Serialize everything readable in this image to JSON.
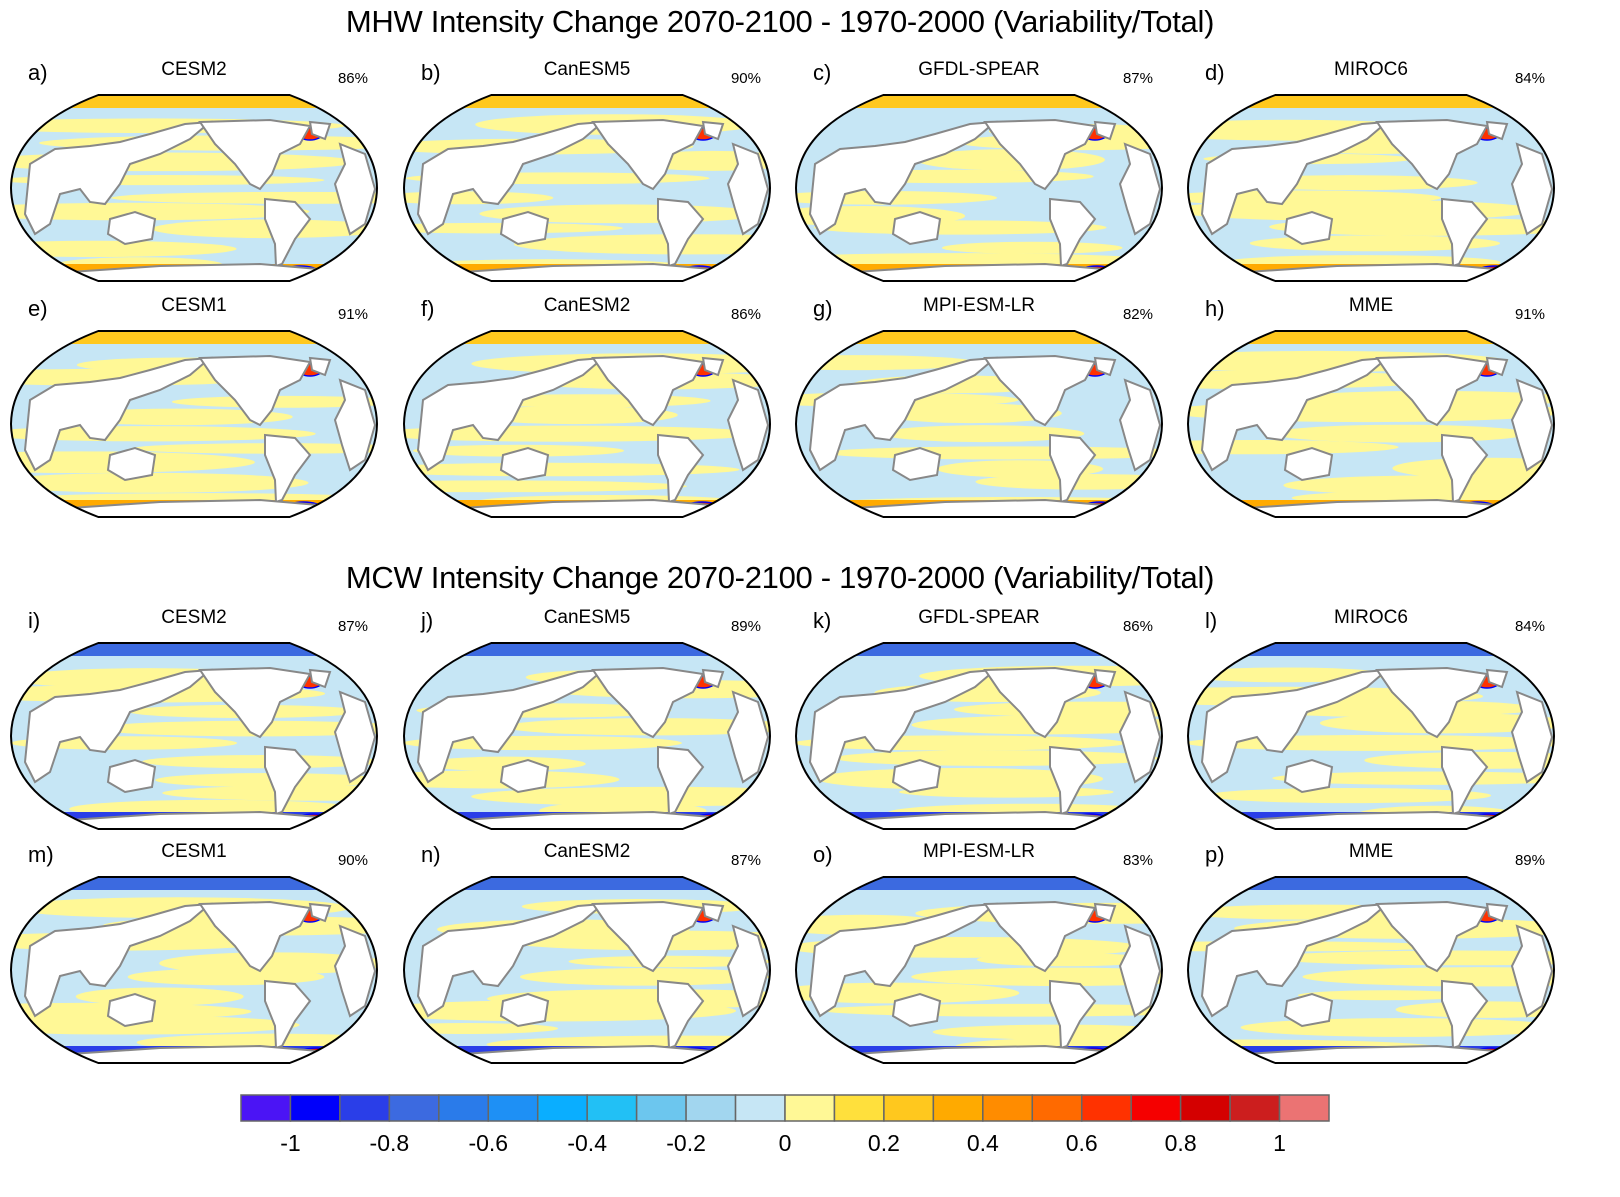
{
  "chart_data": [
    {
      "type": "heatmap",
      "title": "MHW Intensity Change 2070-2100 - 1970-2000 (Variability/Total)",
      "projection": "Robinson (Pacific-centered world map)",
      "panels": [
        {
          "label": "a)",
          "model": "CESM2",
          "percent": "86%"
        },
        {
          "label": "b)",
          "model": "CanESM5",
          "percent": "90%"
        },
        {
          "label": "c)",
          "model": "GFDL-SPEAR",
          "percent": "87%"
        },
        {
          "label": "d)",
          "model": "MIROC6",
          "percent": "84%"
        },
        {
          "label": "e)",
          "model": "CESM1",
          "percent": "91%"
        },
        {
          "label": "f)",
          "model": "CanESM2",
          "percent": "86%"
        },
        {
          "label": "g)",
          "model": "MPI-ESM-LR",
          "percent": "82%"
        },
        {
          "label": "h)",
          "model": "MME",
          "percent": "91%"
        }
      ]
    },
    {
      "type": "heatmap",
      "title": "MCW Intensity Change 2070-2100 - 1970-2000 (Variability/Total)",
      "projection": "Robinson (Pacific-centered world map)",
      "panels": [
        {
          "label": "i)",
          "model": "CESM2",
          "percent": "87%"
        },
        {
          "label": "j)",
          "model": "CanESM5",
          "percent": "89%"
        },
        {
          "label": "k)",
          "model": "GFDL-SPEAR",
          "percent": "86%"
        },
        {
          "label": "l)",
          "model": "MIROC6",
          "percent": "84%"
        },
        {
          "label": "m)",
          "model": "CESM1",
          "percent": "90%"
        },
        {
          "label": "n)",
          "model": "CanESM2",
          "percent": "87%"
        },
        {
          "label": "o)",
          "model": "MPI-ESM-LR",
          "percent": "83%"
        },
        {
          "label": "p)",
          "model": "MME",
          "percent": "89%"
        }
      ]
    }
  ],
  "colorbar": {
    "range": [
      -1.1,
      1.1
    ],
    "step": 0.1,
    "tick_labels": [
      "-1",
      "-0.8",
      "-0.6",
      "-0.4",
      "-0.2",
      "0",
      "0.2",
      "0.4",
      "0.6",
      "0.8",
      "1"
    ],
    "tick_values": [
      -1,
      -0.8,
      -0.6,
      -0.4,
      -0.2,
      0,
      0.2,
      0.4,
      0.6,
      0.8,
      1
    ],
    "colors": [
      "#4b14f5",
      "#0000fa",
      "#2a3ee8",
      "#3c6ae0",
      "#2a7bea",
      "#1e90f5",
      "#0aaeff",
      "#22c0f5",
      "#6cc6ee",
      "#a2d6ef",
      "#c6e6f5",
      "#fff896",
      "#ffe03c",
      "#ffc81e",
      "#ffaa00",
      "#ff8c00",
      "#ff6a00",
      "#ff3200",
      "#f50000",
      "#d40000",
      "#cc1e1e",
      "#eb7373"
    ]
  },
  "map_colors": {
    "land": "#ffffff",
    "coast": "#888888",
    "frame": "#000000"
  }
}
